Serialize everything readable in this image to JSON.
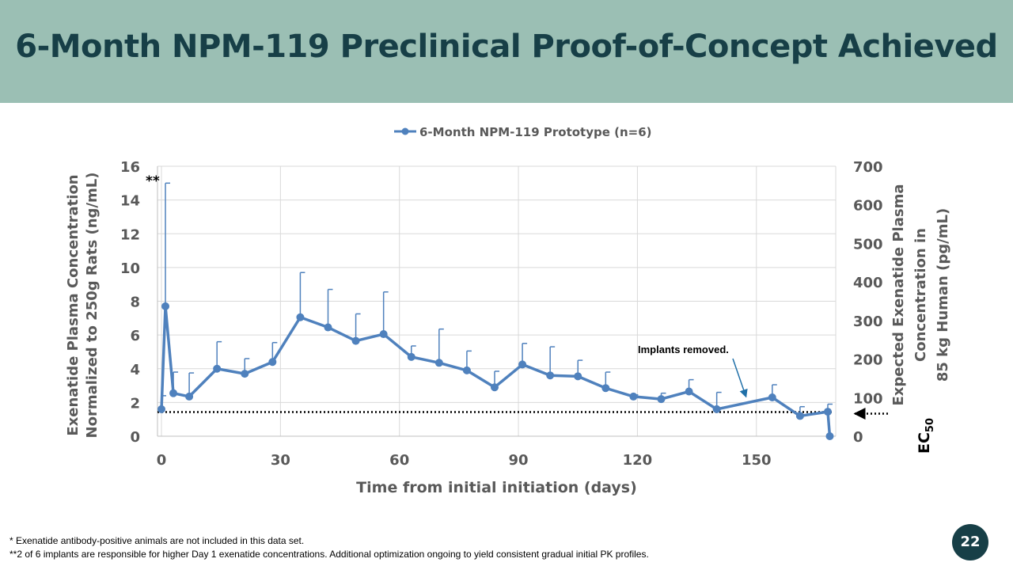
{
  "header": {
    "title": "6-Month NPM-119 Preclinical Proof-of-Concept Achieved"
  },
  "footnotes": {
    "note1": "*  Exenatide antibody-positive  animals are not included in this data set.",
    "note2": "**2 of 6 implants are responsible  for higher Day 1 exenatide concentrations.  Additional optimization ongoing to yield consistent gradual initial PK profiles."
  },
  "page_number": "22",
  "colors": {
    "header_bg": "#9bbfb4",
    "title": "#173f47",
    "series": "#4f81bd",
    "arrow": "#1f6fa8"
  },
  "chart_data": {
    "type": "line",
    "legend": {
      "position": "top",
      "entries": [
        "6-Month NPM-119 Prototype (n=6)"
      ]
    },
    "xlabel": "Time from initial initiation (days)",
    "ylabel_left": "Exenatide Plasma Concentration\nNormalized to 250g  Rats (ng/mL)",
    "ylabel_right": "Expected Exenatide Plasma\nConcentration in\n85 kg Human (pg/mL)",
    "xlim": [
      -1,
      170
    ],
    "xticks": [
      0,
      30,
      60,
      90,
      120,
      150
    ],
    "ylim_left": [
      0,
      16
    ],
    "yticks_left": [
      0,
      2,
      4,
      6,
      8,
      10,
      12,
      14,
      16
    ],
    "ylim_right": [
      0,
      700
    ],
    "yticks_right": [
      0,
      100,
      200,
      300,
      400,
      500,
      600,
      700
    ],
    "grid": true,
    "series": [
      {
        "name": "6-Month NPM-119 Prototype (n=6)",
        "x": [
          0,
          1,
          3,
          7,
          14,
          21,
          28,
          35,
          42,
          49,
          56,
          63,
          70,
          77,
          84,
          91,
          98,
          105,
          112,
          119,
          126,
          133,
          140,
          154,
          161,
          168,
          168.5
        ],
        "y": [
          1.6,
          7.7,
          2.55,
          2.35,
          4.0,
          3.7,
          4.4,
          7.05,
          6.45,
          5.65,
          6.05,
          4.7,
          4.35,
          3.9,
          2.9,
          4.25,
          3.6,
          3.55,
          2.85,
          2.35,
          2.2,
          2.65,
          1.6,
          2.3,
          1.2,
          1.45,
          0.0
        ],
        "error_upper": [
          2.4,
          15.0,
          3.8,
          3.75,
          5.6,
          4.6,
          5.55,
          9.7,
          8.7,
          7.25,
          8.55,
          5.35,
          6.35,
          5.05,
          3.85,
          5.5,
          5.3,
          4.5,
          3.8,
          2.45,
          2.55,
          3.35,
          2.6,
          3.05,
          1.75,
          1.9,
          0.0
        ]
      }
    ],
    "reference_line": {
      "label": "EC50",
      "label_main": "EC",
      "label_sub": "50",
      "y_left": 1.43
    },
    "annotations": [
      {
        "text": "Implants removed.",
        "points_to_x": 148,
        "points_to_y": 1.95
      },
      {
        "text": "**",
        "at_x": 1,
        "at_y": 15.0
      }
    ]
  }
}
